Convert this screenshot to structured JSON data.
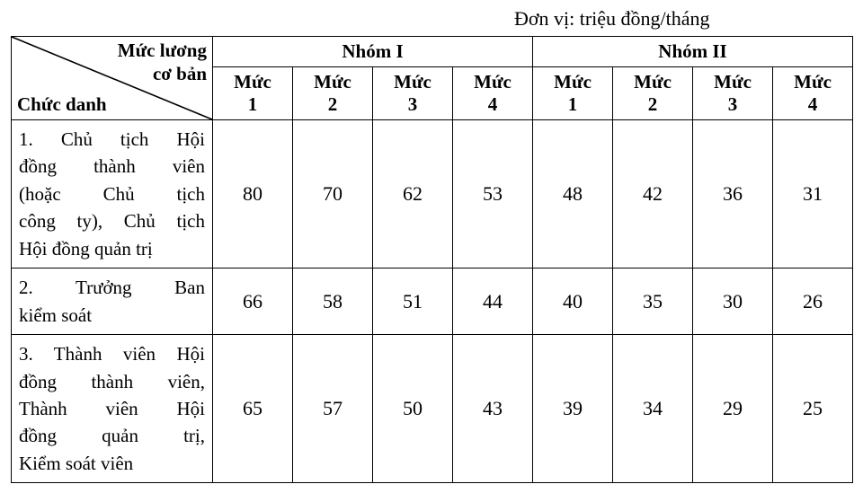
{
  "unit_label": "Đơn vị: triệu đồng/tháng",
  "table": {
    "type": "table",
    "background_color": "#ffffff",
    "border_color": "#000000",
    "text_color": "#000000",
    "header_fontsize": 21,
    "cell_fontsize": 22,
    "diag": {
      "top_line1": "Mức lương",
      "top_line2": "cơ bản",
      "bottom": "Chức danh"
    },
    "groups": [
      {
        "label": "Nhóm I",
        "subs": [
          "Mức 1",
          "Mức 2",
          "Mức 3",
          "Mức 4"
        ]
      },
      {
        "label": "Nhóm II",
        "subs": [
          "Mức 1",
          "Mức 2",
          "Mức 3",
          "Mức 4"
        ]
      }
    ],
    "rows": [
      {
        "label_lines": [
          "1. Chủ tịch Hội",
          "đồng thành viên",
          "(hoặc Chủ tịch",
          "công ty), Chủ tịch"
        ],
        "label_last": "Hội đồng quản trị",
        "values": [
          80,
          70,
          62,
          53,
          48,
          42,
          36,
          31
        ]
      },
      {
        "label_lines": [
          "2. Trưởng Ban"
        ],
        "label_last": "kiểm soát",
        "values": [
          66,
          58,
          51,
          44,
          40,
          35,
          30,
          26
        ]
      },
      {
        "label_lines": [
          "3. Thành viên Hội",
          "đồng thành viên,",
          "Thành viên Hội",
          "đồng quản trị,"
        ],
        "label_last": "Kiểm soát viên",
        "values": [
          65,
          57,
          50,
          43,
          39,
          34,
          29,
          25
        ]
      }
    ]
  }
}
